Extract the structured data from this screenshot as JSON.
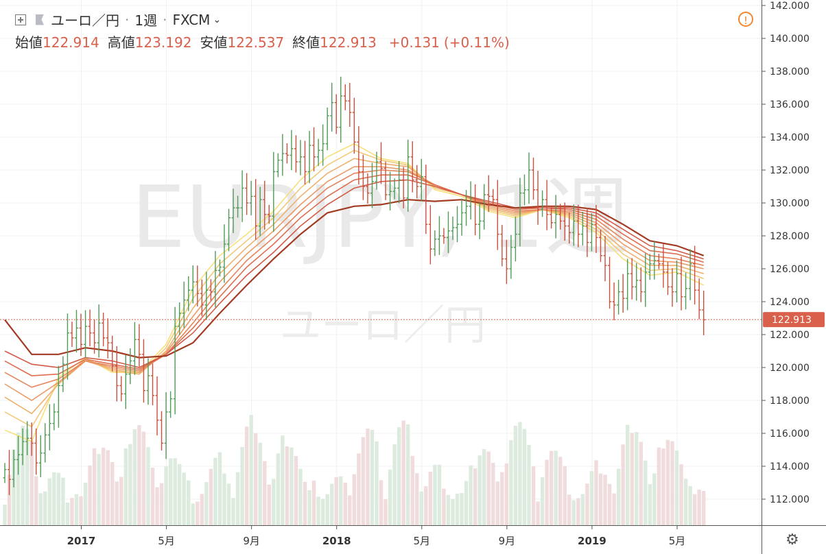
{
  "header": {
    "symbol_name": "ユーロ／円",
    "interval": "1週",
    "source": "FXCM",
    "open_label": "始値",
    "open_value": "122.914",
    "high_label": "高値",
    "high_value": "123.192",
    "low_label": "安値",
    "low_value": "122.537",
    "close_label": "終値",
    "close_value": "122.913",
    "change": "+0.131",
    "change_pct": "(+0.11%)"
  },
  "watermark": {
    "line1": "EURJPY, 1週",
    "line2": "ユーロ／円"
  },
  "colors": {
    "up": "#4f9a56",
    "down": "#c8503d",
    "accent": "#f0872c",
    "price_line": "#d9604b"
  },
  "icons": [
    "expand-icon",
    "flag-icon",
    "chevron-down-icon",
    "warning-icon",
    "gear-icon"
  ],
  "chart_data": {
    "type": "ohlc",
    "price_axis": {
      "ylim": [
        111,
        142
      ],
      "ticks": [
        "142.000",
        "140.000",
        "138.000",
        "136.000",
        "134.000",
        "132.000",
        "130.000",
        "128.000",
        "126.000",
        "124.000",
        "122.000",
        "120.000",
        "118.000",
        "116.000",
        "114.000",
        "112.000"
      ]
    },
    "time_axis": {
      "labels": [
        "2017",
        "5月",
        "9月",
        "2018",
        "5月",
        "9月",
        "2019",
        "5月"
      ],
      "label_bars": [
        17,
        36,
        55,
        74,
        93,
        112,
        131,
        150
      ]
    },
    "last_price": "122.913",
    "ohlc_closes": [
      113.8,
      113.2,
      114.4,
      114.7,
      115.5,
      115.7,
      115.4,
      114.2,
      114.8,
      115.9,
      116.6,
      117.3,
      118.9,
      120.2,
      122.1,
      121.8,
      122.4,
      121.4,
      122.5,
      122.1,
      121.5,
      122.7,
      121.8,
      121.5,
      120.1,
      118.9,
      118.4,
      119.6,
      120.4,
      121.7,
      120.8,
      118.6,
      119.5,
      118.3,
      116.8,
      115.4,
      117.3,
      118.1,
      122.5,
      123.3,
      124.1,
      124.7,
      125.2,
      124.5,
      123.8,
      124.7,
      124.6,
      125.9,
      126.1,
      127.5,
      129.1,
      129.7,
      129.7,
      130.9,
      130.0,
      130.4,
      128.6,
      130.2,
      129.3,
      129.2,
      131.9,
      132.6,
      133.0,
      132.9,
      133.3,
      132.5,
      132.8,
      131.9,
      133.5,
      132.8,
      133.2,
      133.6,
      135.3,
      136.1,
      134.6,
      136.5,
      136.2,
      135.5,
      133.7,
      131.9,
      131.0,
      130.6,
      131.3,
      132.5,
      132.1,
      130.5,
      130.7,
      130.9,
      131.4,
      130.3,
      132.8,
      131.4,
      131.0,
      131.6,
      128.7,
      127.2,
      127.8,
      128.0,
      127.9,
      128.3,
      128.5,
      128.7,
      129.4,
      129.8,
      130.3,
      128.7,
      128.9,
      130.5,
      130.4,
      130.2,
      128.1,
      126.6,
      126.0,
      127.3,
      128.1,
      130.6,
      130.8,
      132.0,
      130.8,
      129.6,
      130.2,
      129.3,
      128.8,
      129.3,
      128.9,
      128.6,
      128.2,
      128.9,
      128.1,
      128.6,
      127.6,
      128.7,
      127.9,
      126.8,
      126.2,
      124.0,
      123.8,
      124.6,
      124.2,
      125.7,
      124.9,
      125.3,
      124.6,
      125.8,
      126.3,
      126.5,
      126.3,
      125.8,
      124.9,
      124.6,
      125.7,
      124.3,
      124.8,
      126.3,
      124.7,
      123.5,
      122.9
    ],
    "ma_overlays": [
      {
        "name": "MA-1",
        "color": "#f7e07a",
        "points": [
          [
            0,
            116.2
          ],
          [
            6,
            115.5
          ],
          [
            12,
            119.4
          ],
          [
            18,
            120.6
          ],
          [
            24,
            119.7
          ],
          [
            30,
            119.7
          ],
          [
            36,
            121.4
          ],
          [
            42,
            124.8
          ],
          [
            48,
            126.8
          ],
          [
            54,
            128.1
          ],
          [
            60,
            129.5
          ],
          [
            66,
            131.4
          ],
          [
            72,
            132.8
          ],
          [
            78,
            133.6
          ],
          [
            84,
            132.7
          ],
          [
            90,
            132.4
          ],
          [
            96,
            130.8
          ],
          [
            102,
            130.4
          ],
          [
            108,
            129.5
          ],
          [
            114,
            129.1
          ],
          [
            120,
            129.6
          ],
          [
            126,
            129.1
          ],
          [
            132,
            128.2
          ],
          [
            138,
            126.6
          ],
          [
            144,
            125.6
          ],
          [
            150,
            125.8
          ],
          [
            156,
            125.0
          ]
        ]
      },
      {
        "name": "MA-2",
        "color": "#f3c878",
        "points": [
          [
            0,
            117.3
          ],
          [
            6,
            116.4
          ],
          [
            12,
            119.1
          ],
          [
            18,
            120.5
          ],
          [
            24,
            119.8
          ],
          [
            30,
            119.6
          ],
          [
            36,
            121.2
          ],
          [
            42,
            124.2
          ],
          [
            48,
            126.3
          ],
          [
            54,
            127.7
          ],
          [
            60,
            129.1
          ],
          [
            66,
            130.9
          ],
          [
            72,
            132.3
          ],
          [
            78,
            133.2
          ],
          [
            84,
            132.6
          ],
          [
            90,
            132.3
          ],
          [
            96,
            130.9
          ],
          [
            102,
            130.5
          ],
          [
            108,
            129.6
          ],
          [
            114,
            129.2
          ],
          [
            120,
            129.6
          ],
          [
            126,
            129.2
          ],
          [
            132,
            128.4
          ],
          [
            138,
            126.9
          ],
          [
            144,
            125.9
          ],
          [
            150,
            126.0
          ],
          [
            156,
            125.4
          ]
        ]
      },
      {
        "name": "MA-3",
        "color": "#efb06e",
        "points": [
          [
            0,
            118.2
          ],
          [
            6,
            117.2
          ],
          [
            12,
            119.0
          ],
          [
            18,
            120.4
          ],
          [
            24,
            119.9
          ],
          [
            30,
            119.6
          ],
          [
            36,
            121.0
          ],
          [
            42,
            123.6
          ],
          [
            48,
            125.7
          ],
          [
            54,
            127.3
          ],
          [
            60,
            128.7
          ],
          [
            66,
            130.4
          ],
          [
            72,
            131.8
          ],
          [
            78,
            132.7
          ],
          [
            84,
            132.4
          ],
          [
            90,
            132.2
          ],
          [
            96,
            131.0
          ],
          [
            102,
            130.5
          ],
          [
            108,
            129.7
          ],
          [
            114,
            129.3
          ],
          [
            120,
            129.6
          ],
          [
            126,
            129.3
          ],
          [
            132,
            128.6
          ],
          [
            138,
            127.2
          ],
          [
            144,
            126.2
          ],
          [
            150,
            126.2
          ],
          [
            156,
            125.7
          ]
        ]
      },
      {
        "name": "MA-4",
        "color": "#ec9a64",
        "points": [
          [
            0,
            119.0
          ],
          [
            6,
            118.0
          ],
          [
            12,
            119.1
          ],
          [
            18,
            120.4
          ],
          [
            24,
            120.0
          ],
          [
            30,
            119.7
          ],
          [
            36,
            120.9
          ],
          [
            42,
            123.1
          ],
          [
            48,
            125.2
          ],
          [
            54,
            126.9
          ],
          [
            60,
            128.3
          ],
          [
            66,
            129.9
          ],
          [
            72,
            131.3
          ],
          [
            78,
            132.2
          ],
          [
            84,
            132.2
          ],
          [
            90,
            132.0
          ],
          [
            96,
            131.1
          ],
          [
            102,
            130.5
          ],
          [
            108,
            129.8
          ],
          [
            114,
            129.4
          ],
          [
            120,
            129.6
          ],
          [
            126,
            129.4
          ],
          [
            132,
            128.8
          ],
          [
            138,
            127.5
          ],
          [
            144,
            126.5
          ],
          [
            150,
            126.4
          ],
          [
            156,
            126.0
          ]
        ]
      },
      {
        "name": "MA-5",
        "color": "#e6845a",
        "points": [
          [
            0,
            119.7
          ],
          [
            6,
            118.8
          ],
          [
            12,
            119.3
          ],
          [
            18,
            120.4
          ],
          [
            24,
            120.1
          ],
          [
            30,
            119.8
          ],
          [
            36,
            120.8
          ],
          [
            42,
            122.7
          ],
          [
            48,
            124.7
          ],
          [
            54,
            126.5
          ],
          [
            60,
            127.9
          ],
          [
            66,
            129.5
          ],
          [
            72,
            130.9
          ],
          [
            78,
            131.8
          ],
          [
            84,
            132.0
          ],
          [
            90,
            131.9
          ],
          [
            96,
            131.1
          ],
          [
            102,
            130.5
          ],
          [
            108,
            129.9
          ],
          [
            114,
            129.5
          ],
          [
            120,
            129.6
          ],
          [
            126,
            129.5
          ],
          [
            132,
            129.0
          ],
          [
            138,
            127.8
          ],
          [
            144,
            126.8
          ],
          [
            150,
            126.6
          ],
          [
            156,
            126.2
          ]
        ]
      },
      {
        "name": "MA-6",
        "color": "#de6e50",
        "points": [
          [
            0,
            120.4
          ],
          [
            6,
            119.5
          ],
          [
            12,
            119.6
          ],
          [
            18,
            120.5
          ],
          [
            24,
            120.2
          ],
          [
            30,
            119.9
          ],
          [
            36,
            120.8
          ],
          [
            42,
            122.4
          ],
          [
            48,
            124.3
          ],
          [
            54,
            126.1
          ],
          [
            60,
            127.5
          ],
          [
            66,
            129.1
          ],
          [
            72,
            130.4
          ],
          [
            78,
            131.4
          ],
          [
            84,
            131.7
          ],
          [
            90,
            131.7
          ],
          [
            96,
            131.1
          ],
          [
            102,
            130.5
          ],
          [
            108,
            130.0
          ],
          [
            114,
            129.6
          ],
          [
            120,
            129.7
          ],
          [
            126,
            129.6
          ],
          [
            132,
            129.2
          ],
          [
            138,
            128.1
          ],
          [
            144,
            127.1
          ],
          [
            150,
            126.9
          ],
          [
            156,
            126.4
          ]
        ]
      },
      {
        "name": "MA-7",
        "color": "#d25a46",
        "points": [
          [
            0,
            121.0
          ],
          [
            6,
            120.2
          ],
          [
            12,
            120.0
          ],
          [
            18,
            120.6
          ],
          [
            24,
            120.4
          ],
          [
            30,
            120.0
          ],
          [
            36,
            120.8
          ],
          [
            42,
            122.1
          ],
          [
            48,
            123.9
          ],
          [
            54,
            125.6
          ],
          [
            60,
            127.0
          ],
          [
            66,
            128.6
          ],
          [
            72,
            129.9
          ],
          [
            78,
            130.9
          ],
          [
            84,
            131.3
          ],
          [
            90,
            131.4
          ],
          [
            96,
            131.0
          ],
          [
            102,
            130.5
          ],
          [
            108,
            130.1
          ],
          [
            114,
            129.7
          ],
          [
            120,
            129.7
          ],
          [
            126,
            129.7
          ],
          [
            132,
            129.4
          ],
          [
            138,
            128.4
          ],
          [
            144,
            127.4
          ],
          [
            150,
            127.1
          ],
          [
            156,
            126.6
          ]
        ]
      },
      {
        "name": "MA-8",
        "color": "#a33a22",
        "points": [
          [
            0,
            122.9
          ],
          [
            6,
            120.8
          ],
          [
            12,
            120.8
          ],
          [
            18,
            121.2
          ],
          [
            24,
            121.0
          ],
          [
            30,
            120.6
          ],
          [
            36,
            120.7
          ],
          [
            42,
            121.5
          ],
          [
            48,
            123.3
          ],
          [
            54,
            125.0
          ],
          [
            60,
            126.6
          ],
          [
            66,
            128.1
          ],
          [
            72,
            129.4
          ],
          [
            78,
            129.8
          ],
          [
            84,
            129.9
          ],
          [
            90,
            130.2
          ],
          [
            96,
            130.1
          ],
          [
            102,
            130.2
          ],
          [
            108,
            129.9
          ],
          [
            114,
            129.7
          ],
          [
            120,
            129.8
          ],
          [
            126,
            129.8
          ],
          [
            132,
            129.6
          ],
          [
            138,
            128.7
          ],
          [
            144,
            127.7
          ],
          [
            150,
            127.4
          ],
          [
            156,
            126.8
          ]
        ]
      }
    ]
  }
}
